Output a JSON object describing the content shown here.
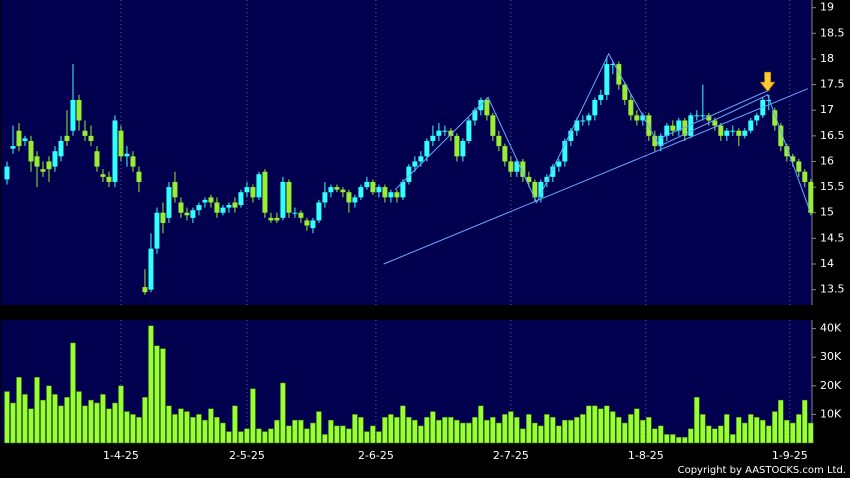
{
  "chart_data": [
    {
      "type": "candlestick",
      "up_color": "#33ffff",
      "down_color": "#99ee33",
      "ylim": [
        13.2,
        19.15
      ],
      "yticks": [
        13.5,
        14,
        14.5,
        15,
        15.5,
        16,
        16.5,
        17,
        17.5,
        18,
        18.5,
        19
      ],
      "ohlc": [
        [
          15.65,
          16.0,
          15.55,
          15.9
        ],
        [
          16.25,
          16.7,
          16.15,
          16.3
        ],
        [
          16.6,
          16.75,
          16.2,
          16.3
        ],
        [
          16.4,
          16.5,
          16.3,
          16.45
        ],
        [
          16.4,
          16.5,
          15.8,
          16.0
        ],
        [
          16.1,
          16.2,
          15.5,
          15.9
        ],
        [
          15.85,
          16.0,
          15.7,
          15.8
        ],
        [
          16.0,
          16.1,
          15.6,
          15.85
        ],
        [
          15.9,
          16.3,
          15.8,
          16.2
        ],
        [
          16.1,
          16.5,
          16.0,
          16.4
        ],
        [
          16.5,
          17.0,
          16.3,
          16.4
        ],
        [
          16.6,
          17.9,
          16.5,
          17.2
        ],
        [
          17.2,
          17.3,
          16.6,
          16.8
        ],
        [
          16.6,
          16.8,
          16.4,
          16.5
        ],
        [
          16.5,
          16.7,
          16.3,
          16.4
        ],
        [
          16.2,
          16.3,
          15.8,
          15.9
        ],
        [
          15.75,
          15.85,
          15.6,
          15.7
        ],
        [
          15.7,
          15.8,
          15.5,
          15.6
        ],
        [
          15.6,
          16.9,
          15.5,
          16.8
        ],
        [
          16.6,
          16.7,
          16.0,
          16.1
        ],
        [
          16.1,
          16.3,
          15.9,
          16.15
        ],
        [
          16.1,
          16.2,
          15.8,
          15.9
        ],
        [
          15.8,
          15.9,
          15.4,
          15.6
        ],
        [
          13.55,
          13.9,
          13.4,
          13.45
        ],
        [
          13.5,
          14.6,
          13.45,
          14.3
        ],
        [
          14.3,
          15.1,
          14.2,
          15.0
        ],
        [
          15.0,
          15.2,
          14.6,
          14.8
        ],
        [
          14.9,
          15.6,
          14.8,
          15.5
        ],
        [
          15.6,
          15.8,
          15.2,
          15.3
        ],
        [
          15.2,
          15.3,
          14.9,
          15.0
        ],
        [
          15.0,
          15.1,
          14.85,
          14.95
        ],
        [
          14.9,
          15.1,
          14.8,
          15.05
        ],
        [
          15.05,
          15.2,
          14.95,
          15.15
        ],
        [
          15.2,
          15.3,
          15.1,
          15.25
        ],
        [
          15.3,
          15.35,
          15.1,
          15.2
        ],
        [
          15.2,
          15.3,
          14.9,
          15.0
        ],
        [
          15.0,
          15.15,
          14.95,
          15.1
        ],
        [
          15.1,
          15.2,
          15.0,
          15.15
        ],
        [
          15.2,
          15.3,
          15.0,
          15.1
        ],
        [
          15.15,
          15.45,
          15.1,
          15.4
        ],
        [
          15.4,
          15.6,
          15.3,
          15.5
        ],
        [
          15.5,
          15.55,
          15.2,
          15.3
        ],
        [
          15.3,
          15.8,
          15.25,
          15.75
        ],
        [
          15.8,
          15.85,
          14.9,
          15.0
        ],
        [
          14.9,
          15.0,
          14.8,
          14.85
        ],
        [
          14.9,
          15.0,
          14.8,
          14.85
        ],
        [
          14.9,
          15.7,
          14.85,
          15.6
        ],
        [
          15.6,
          15.65,
          14.9,
          15.0
        ],
        [
          15.0,
          15.1,
          14.9,
          15.0
        ],
        [
          15.0,
          15.05,
          14.8,
          14.9
        ],
        [
          14.85,
          14.9,
          14.65,
          14.75
        ],
        [
          14.7,
          14.9,
          14.6,
          14.85
        ],
        [
          14.85,
          15.25,
          14.8,
          15.2
        ],
        [
          15.2,
          15.6,
          15.1,
          15.4
        ],
        [
          15.4,
          15.55,
          15.3,
          15.5
        ],
        [
          15.5,
          15.55,
          15.4,
          15.45
        ],
        [
          15.45,
          15.5,
          15.3,
          15.4
        ],
        [
          15.4,
          15.45,
          15.0,
          15.2
        ],
        [
          15.2,
          15.35,
          15.1,
          15.3
        ],
        [
          15.3,
          15.55,
          15.25,
          15.5
        ],
        [
          15.5,
          15.7,
          15.45,
          15.6
        ],
        [
          15.6,
          15.65,
          15.35,
          15.4
        ],
        [
          15.4,
          15.55,
          15.3,
          15.5
        ],
        [
          15.5,
          15.55,
          15.2,
          15.3
        ],
        [
          15.3,
          15.45,
          15.2,
          15.4
        ],
        [
          15.4,
          15.45,
          15.2,
          15.3
        ],
        [
          15.3,
          15.65,
          15.25,
          15.6
        ],
        [
          15.6,
          15.95,
          15.55,
          15.9
        ],
        [
          15.9,
          16.1,
          15.8,
          16.0
        ],
        [
          16.0,
          16.2,
          15.9,
          16.1
        ],
        [
          16.1,
          16.45,
          16.0,
          16.4
        ],
        [
          16.4,
          16.7,
          16.3,
          16.5
        ],
        [
          16.5,
          16.75,
          16.4,
          16.6
        ],
        [
          16.6,
          16.7,
          16.5,
          16.6
        ],
        [
          16.6,
          16.65,
          16.4,
          16.5
        ],
        [
          16.5,
          16.55,
          16.0,
          16.1
        ],
        [
          16.1,
          16.45,
          16.0,
          16.4
        ],
        [
          16.4,
          16.85,
          16.35,
          16.8
        ],
        [
          16.8,
          17.05,
          16.7,
          17.0
        ],
        [
          17.0,
          17.25,
          16.9,
          17.2
        ],
        [
          17.2,
          17.25,
          16.8,
          16.9
        ],
        [
          16.9,
          16.95,
          16.4,
          16.5
        ],
        [
          16.5,
          16.6,
          16.2,
          16.3
        ],
        [
          16.3,
          16.35,
          15.9,
          16.0
        ],
        [
          16.0,
          16.1,
          15.7,
          15.8
        ],
        [
          15.8,
          16.05,
          15.7,
          16.0
        ],
        [
          16.0,
          16.05,
          15.6,
          15.7
        ],
        [
          15.7,
          15.8,
          15.5,
          15.6
        ],
        [
          15.6,
          15.65,
          15.2,
          15.3
        ],
        [
          15.3,
          15.65,
          15.2,
          15.6
        ],
        [
          15.6,
          15.75,
          15.5,
          15.7
        ],
        [
          15.7,
          15.95,
          15.6,
          15.9
        ],
        [
          15.9,
          16.05,
          15.8,
          16.0
        ],
        [
          16.0,
          16.45,
          15.9,
          16.4
        ],
        [
          16.4,
          16.65,
          16.3,
          16.6
        ],
        [
          16.6,
          16.85,
          16.5,
          16.8
        ],
        [
          16.8,
          16.9,
          16.7,
          16.8
        ],
        [
          16.8,
          16.95,
          16.7,
          16.9
        ],
        [
          16.9,
          17.25,
          16.8,
          17.2
        ],
        [
          17.2,
          17.4,
          17.1,
          17.3
        ],
        [
          17.3,
          18.05,
          17.2,
          17.9
        ],
        [
          17.9,
          17.95,
          17.7,
          17.9
        ],
        [
          17.9,
          17.95,
          17.4,
          17.5
        ],
        [
          17.5,
          17.55,
          17.1,
          17.2
        ],
        [
          17.2,
          17.3,
          16.8,
          16.9
        ],
        [
          16.9,
          17.0,
          16.7,
          16.8
        ],
        [
          16.8,
          16.95,
          16.7,
          16.9
        ],
        [
          16.9,
          16.95,
          16.4,
          16.5
        ],
        [
          16.5,
          16.6,
          16.2,
          16.3
        ],
        [
          16.3,
          16.55,
          16.2,
          16.5
        ],
        [
          16.5,
          16.75,
          16.4,
          16.7
        ],
        [
          16.7,
          16.8,
          16.5,
          16.6
        ],
        [
          16.6,
          16.85,
          16.5,
          16.8
        ],
        [
          16.8,
          16.85,
          16.4,
          16.5
        ],
        [
          16.5,
          16.95,
          16.45,
          16.9
        ],
        [
          16.9,
          17.0,
          16.8,
          16.9
        ],
        [
          16.9,
          17.5,
          16.8,
          16.9
        ],
        [
          16.9,
          16.95,
          16.7,
          16.8
        ],
        [
          16.8,
          16.85,
          16.6,
          16.7
        ],
        [
          16.7,
          16.75,
          16.4,
          16.5
        ],
        [
          16.5,
          16.65,
          16.4,
          16.6
        ],
        [
          16.6,
          16.7,
          16.5,
          16.6
        ],
        [
          16.6,
          16.65,
          16.3,
          16.5
        ],
        [
          16.5,
          16.65,
          16.45,
          16.6
        ],
        [
          16.6,
          16.85,
          16.55,
          16.8
        ],
        [
          16.8,
          16.95,
          16.7,
          16.9
        ],
        [
          16.9,
          17.25,
          16.85,
          17.2
        ],
        [
          17.2,
          17.3,
          17.0,
          17.2
        ],
        [
          17.0,
          17.05,
          16.6,
          16.7
        ],
        [
          16.7,
          16.75,
          16.2,
          16.3
        ],
        [
          16.3,
          16.35,
          16.0,
          16.1
        ],
        [
          16.1,
          16.15,
          15.9,
          16.0
        ],
        [
          16.0,
          16.05,
          15.7,
          15.8
        ],
        [
          15.8,
          15.85,
          15.5,
          15.6
        ],
        [
          15.6,
          15.65,
          14.95,
          15.0
        ]
      ],
      "trendlines": [
        {
          "color": "#66aaff",
          "x": [
            62.8,
            133.5
          ],
          "y": [
            14.0,
            17.42
          ]
        },
        {
          "color": "#66aaff",
          "x": [
            64.7,
            80.2,
            88.3,
            100.3,
            108.8,
            126.8,
            133.8
          ],
          "y": [
            15.45,
            17.25,
            15.2,
            18.1,
            16.3,
            17.3,
            15.05
          ]
        },
        {
          "color": "#66aaff",
          "x": [
            108.8,
            127.2
          ],
          "y": [
            16.45,
            17.4
          ]
        }
      ],
      "arrow": {
        "x": 126.8,
        "y": 17.35,
        "color": "#ffcc33"
      }
    },
    {
      "type": "bar",
      "color": "#99ff33",
      "ylim": [
        0,
        43000
      ],
      "yticks": [
        {
          "value": 10000,
          "label": "10K"
        },
        {
          "value": 20000,
          "label": "20K"
        },
        {
          "value": 30000,
          "label": "30K"
        },
        {
          "value": 40000,
          "label": "40K"
        }
      ],
      "xlim": [
        -1,
        134.2
      ],
      "xticks": [
        {
          "value": 19,
          "label": "1-4-25"
        },
        {
          "value": 40,
          "label": "2-5-25"
        },
        {
          "value": 61.5,
          "label": "2-6-25"
        },
        {
          "value": 84,
          "label": "2-7-25"
        },
        {
          "value": 106.5,
          "label": "1-8-25"
        },
        {
          "value": 130.5,
          "label": "1-9-25"
        }
      ],
      "values": [
        18000,
        14000,
        23000,
        17000,
        12000,
        23000,
        15000,
        20000,
        17000,
        13000,
        16000,
        35000,
        18000,
        13000,
        15000,
        14000,
        17000,
        12000,
        14000,
        20000,
        11000,
        10000,
        9000,
        16000,
        41000,
        34000,
        33000,
        13000,
        10000,
        12000,
        11000,
        9000,
        10000,
        8000,
        12000,
        9000,
        7000,
        4000,
        13000,
        4000,
        5000,
        19000,
        5000,
        4000,
        5000,
        8000,
        21000,
        6000,
        8000,
        8000,
        5000,
        7000,
        11000,
        3000,
        8000,
        6000,
        6000,
        5000,
        10000,
        9000,
        4000,
        6000,
        4000,
        9000,
        10000,
        9000,
        13000,
        9000,
        8000,
        6000,
        9000,
        11000,
        8000,
        9000,
        9000,
        8000,
        7000,
        7000,
        9000,
        13000,
        8000,
        9000,
        7000,
        10000,
        11000,
        9000,
        5000,
        10000,
        7000,
        6000,
        10000,
        9000,
        6000,
        8000,
        8000,
        9000,
        10000,
        13000,
        13000,
        12000,
        13000,
        11000,
        9000,
        7000,
        10000,
        12000,
        8000,
        9000,
        5000,
        6000,
        3000,
        3000,
        2000,
        2000,
        5000,
        16000,
        10000,
        6000,
        5000,
        6000,
        10000,
        3000,
        9000,
        7000,
        10000,
        9000,
        8000,
        6000,
        11000,
        15000,
        8000,
        7000,
        10000,
        15000,
        7000
      ]
    }
  ],
  "copyright": "Copyright by AASTOCKS.com Ltd."
}
